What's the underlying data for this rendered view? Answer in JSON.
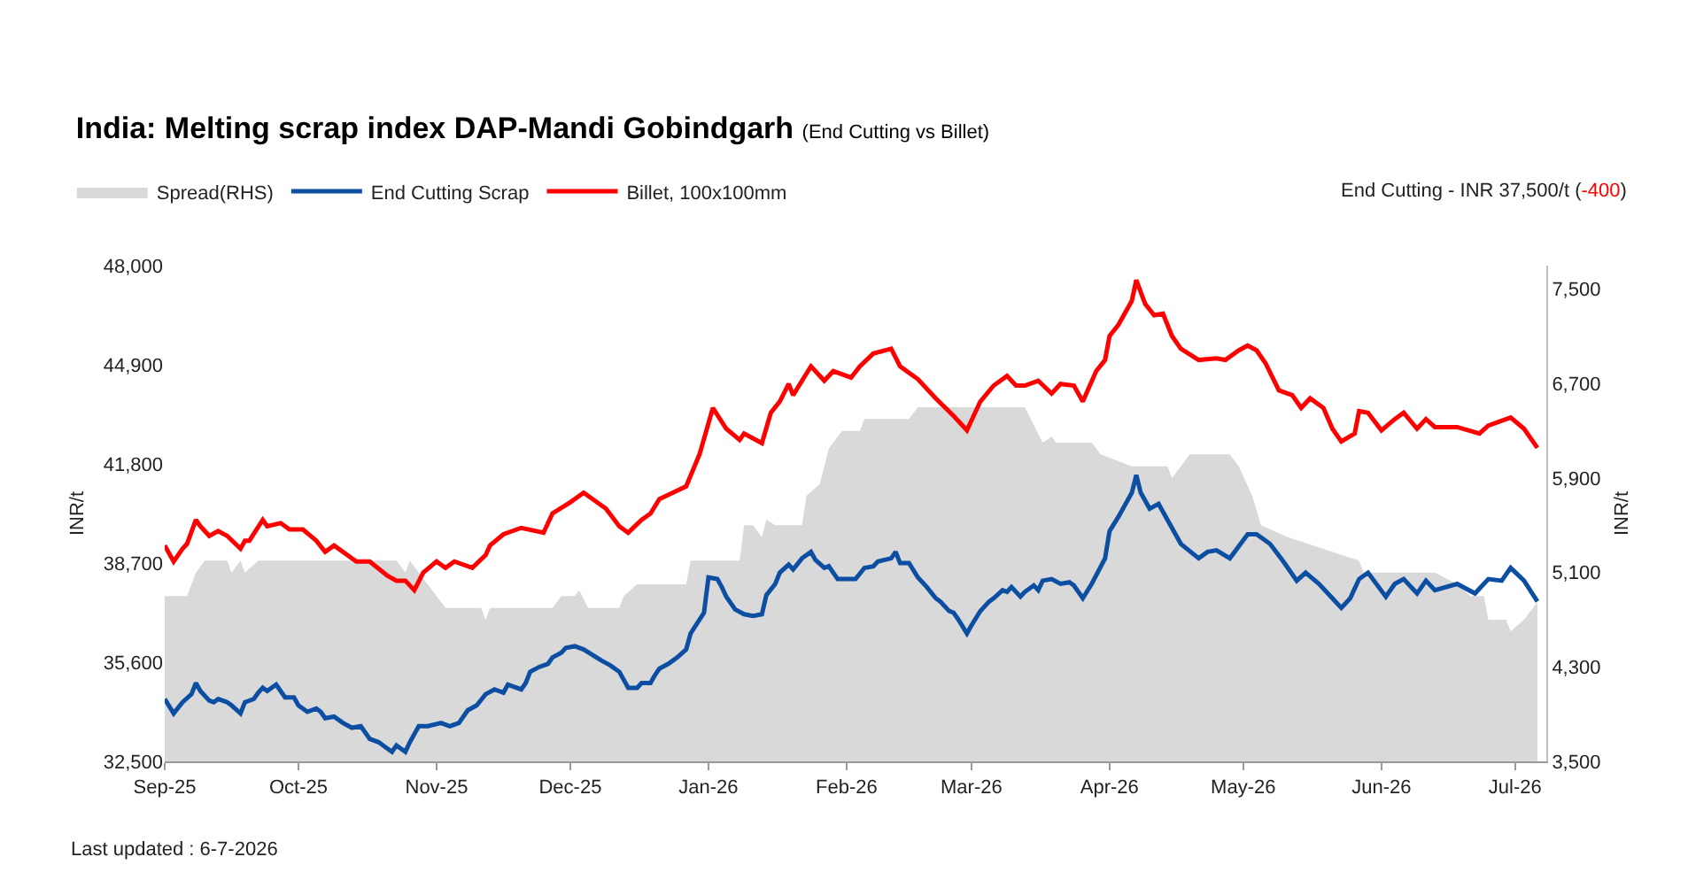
{
  "chart_data": {
    "type": "line",
    "title": "India: Melting scrap index DAP-Mandi Gobindgarh",
    "subtitle": "(End Cutting vs Billet)",
    "ylabel": "INR/t",
    "y2label": "INR/t",
    "annotations": [
      "End Cutting - INR 37,500/t (-400)",
      "Last updated : 6-7-2026"
    ],
    "legend": "top left",
    "grid": false,
    "marker": "none",
    "line_style": "solid",
    "xlim": [
      "2025-09-01",
      "2026-07-08"
    ],
    "xticks": [
      {
        "value": "2025-09-01",
        "label": "Sep-25"
      },
      {
        "value": "2025-10-01",
        "label": "Oct-25"
      },
      {
        "value": "2025-11-01",
        "label": "Nov-25"
      },
      {
        "value": "2025-12-01",
        "label": "Dec-25"
      },
      {
        "value": "2026-01-01",
        "label": "Jan-26"
      },
      {
        "value": "2026-02-01",
        "label": "Feb-26"
      },
      {
        "value": "2026-03-01",
        "label": "Mar-26"
      },
      {
        "value": "2026-04-01",
        "label": "Apr-26"
      },
      {
        "value": "2026-05-01",
        "label": "May-26"
      },
      {
        "value": "2026-06-01",
        "label": "Jun-26"
      },
      {
        "value": "2026-07-01",
        "label": "Jul-26"
      }
    ],
    "ylim": [
      32500,
      48000
    ],
    "yticks": [
      {
        "value": 32500,
        "label": "32,500"
      },
      {
        "value": 35600,
        "label": "35,600"
      },
      {
        "value": 38700,
        "label": "38,700"
      },
      {
        "value": 41800,
        "label": "41,800"
      },
      {
        "value": 44900,
        "label": "44,900"
      },
      {
        "value": 48000,
        "label": "48,000"
      }
    ],
    "y2lim": [
      3500,
      7700
    ],
    "y2ticks": [
      {
        "value": 3500,
        "label": "3,500"
      },
      {
        "value": 4300,
        "label": "4,300"
      },
      {
        "value": 5100,
        "label": "5,100"
      },
      {
        "value": 5900,
        "label": "5,900"
      },
      {
        "value": 6700,
        "label": "6,700"
      },
      {
        "value": 7500,
        "label": "7,500"
      }
    ],
    "series": [
      {
        "name": "Spread(RHS)",
        "type": "area",
        "axis": "y2",
        "color": "#d9d9d9",
        "x": [
          "2025-09-01",
          "2025-09-06",
          "2025-09-08",
          "2025-09-10",
          "2025-09-15",
          "2025-09-16",
          "2025-09-18",
          "2025-09-19",
          "2025-09-22",
          "2025-10-23",
          "2025-10-25",
          "2025-10-26",
          "2025-10-28",
          "2025-10-30",
          "2025-11-03",
          "2025-11-11",
          "2025-11-12",
          "2025-11-13",
          "2025-11-27",
          "2025-11-29",
          "2025-12-02",
          "2025-12-03",
          "2025-12-05",
          "2025-12-12",
          "2025-12-13",
          "2025-12-16",
          "2025-12-27",
          "2025-12-28",
          "2026-01-08",
          "2026-01-09",
          "2026-01-11",
          "2026-01-13",
          "2026-01-14",
          "2026-01-16",
          "2026-01-22",
          "2026-01-23",
          "2026-01-26",
          "2026-01-28",
          "2026-01-31",
          "2026-02-04",
          "2026-02-05",
          "2026-02-15",
          "2026-02-17",
          "2026-03-13",
          "2026-03-17",
          "2026-03-19",
          "2026-03-20",
          "2026-03-28",
          "2026-03-30",
          "2026-04-06",
          "2026-04-14",
          "2026-04-15",
          "2026-04-17",
          "2026-04-19",
          "2026-04-28",
          "2026-04-30",
          "2026-05-03",
          "2026-05-05",
          "2026-05-11",
          "2026-05-19",
          "2026-05-27",
          "2026-05-28",
          "2026-06-13",
          "2026-06-18",
          "2026-06-21",
          "2026-06-24",
          "2026-06-25",
          "2026-06-29",
          "2026-06-30",
          "2026-07-03",
          "2026-07-06"
        ],
        "values": [
          4900,
          4900,
          5100,
          5200,
          5200,
          5100,
          5200,
          5100,
          5200,
          5200,
          5100,
          5200,
          5100,
          5000,
          4800,
          4800,
          4700,
          4800,
          4800,
          4900,
          4900,
          4950,
          4800,
          4800,
          4900,
          5000,
          5000,
          5200,
          5200,
          5500,
          5500,
          5400,
          5550,
          5500,
          5500,
          5750,
          5850,
          6150,
          6300,
          6300,
          6400,
          6400,
          6500,
          6500,
          6200,
          6250,
          6200,
          6200,
          6100,
          6000,
          6000,
          5900,
          6000,
          6100,
          6100,
          6000,
          5750,
          5500,
          5400,
          5300,
          5200,
          5100,
          5100,
          5000,
          4900,
          4900,
          4700,
          4700,
          4600,
          4700,
          4850
        ]
      },
      {
        "name": "End Cutting Scrap",
        "color": "#0b4ea2",
        "x": [
          "2025-09-01",
          "2025-09-03",
          "2025-09-05",
          "2025-09-07",
          "2025-09-08",
          "2025-09-09",
          "2025-09-11",
          "2025-09-12",
          "2025-09-13",
          "2025-09-15",
          "2025-09-16",
          "2025-09-18",
          "2025-09-19",
          "2025-09-21",
          "2025-09-22",
          "2025-09-23",
          "2025-09-24",
          "2025-09-26",
          "2025-09-27",
          "2025-09-28",
          "2025-09-30",
          "2025-10-01",
          "2025-10-03",
          "2025-10-05",
          "2025-10-06",
          "2025-10-07",
          "2025-10-09",
          "2025-10-11",
          "2025-10-13",
          "2025-10-15",
          "2025-10-17",
          "2025-10-19",
          "2025-10-20",
          "2025-10-22",
          "2025-10-23",
          "2025-10-25",
          "2025-10-26",
          "2025-10-28",
          "2025-10-30",
          "2025-11-02",
          "2025-11-04",
          "2025-11-06",
          "2025-11-08",
          "2025-11-10",
          "2025-11-12",
          "2025-11-14",
          "2025-11-16",
          "2025-11-17",
          "2025-11-20",
          "2025-11-21",
          "2025-11-22",
          "2025-11-24",
          "2025-11-26",
          "2025-11-27",
          "2025-11-29",
          "2025-11-30",
          "2025-12-02",
          "2025-12-04",
          "2025-12-08",
          "2025-12-10",
          "2025-12-12",
          "2025-12-13",
          "2025-12-14",
          "2025-12-16",
          "2025-12-17",
          "2025-12-19",
          "2025-12-20",
          "2025-12-21",
          "2025-12-23",
          "2025-12-25",
          "2025-12-27",
          "2025-12-28",
          "2025-12-31",
          "2026-01-01",
          "2026-01-03",
          "2026-01-04",
          "2026-01-05",
          "2026-01-07",
          "2026-01-09",
          "2026-01-11",
          "2026-01-13",
          "2026-01-14",
          "2026-01-16",
          "2026-01-17",
          "2026-01-19",
          "2026-01-20",
          "2026-01-22",
          "2026-01-24",
          "2026-01-25",
          "2026-01-27",
          "2026-01-28",
          "2026-01-30",
          "2026-02-03",
          "2026-02-05",
          "2026-02-07",
          "2026-02-08",
          "2026-02-11",
          "2026-02-12",
          "2026-02-13",
          "2026-02-15",
          "2026-02-17",
          "2026-02-19",
          "2026-02-21",
          "2026-02-22",
          "2026-02-24",
          "2026-02-25",
          "2026-02-26",
          "2026-02-28",
          "2026-03-01",
          "2026-03-03",
          "2026-03-05",
          "2026-03-06",
          "2026-03-08",
          "2026-03-09",
          "2026-03-10",
          "2026-03-12",
          "2026-03-13",
          "2026-03-15",
          "2026-03-16",
          "2026-03-17",
          "2026-03-19",
          "2026-03-21",
          "2026-03-23",
          "2026-03-24",
          "2026-03-26",
          "2026-03-28",
          "2026-03-31",
          "2026-04-01",
          "2026-04-03",
          "2026-04-06",
          "2026-04-07",
          "2026-04-08",
          "2026-04-10",
          "2026-04-12",
          "2026-04-15",
          "2026-04-17",
          "2026-04-21",
          "2026-04-23",
          "2026-04-25",
          "2026-04-28",
          "2026-05-02",
          "2026-05-04",
          "2026-05-07",
          "2026-05-10",
          "2026-05-13",
          "2026-05-15",
          "2026-05-18",
          "2026-05-21",
          "2026-05-23",
          "2026-05-25",
          "2026-05-27",
          "2026-05-29",
          "2026-06-02",
          "2026-06-04",
          "2026-06-06",
          "2026-06-09",
          "2026-06-11",
          "2026-06-13",
          "2026-06-18",
          "2026-06-22",
          "2026-06-25",
          "2026-06-28",
          "2026-06-30",
          "2026-07-03",
          "2026-07-06"
        ],
        "values": [
          34450,
          34000,
          34350,
          34600,
          34950,
          34700,
          34400,
          34350,
          34450,
          34350,
          34250,
          34000,
          34350,
          34450,
          34650,
          34800,
          34700,
          34900,
          34700,
          34500,
          34500,
          34250,
          34050,
          34150,
          34050,
          33850,
          33900,
          33700,
          33550,
          33600,
          33200,
          33100,
          33000,
          32800,
          33000,
          32800,
          33100,
          33600,
          33600,
          33700,
          33600,
          33700,
          34100,
          34250,
          34600,
          34750,
          34650,
          34900,
          34750,
          34950,
          35300,
          35450,
          35550,
          35750,
          35900,
          36050,
          36100,
          36000,
          35650,
          35500,
          35300,
          35050,
          34800,
          34800,
          34950,
          34950,
          35200,
          35400,
          35550,
          35750,
          36000,
          36500,
          37150,
          38250,
          38200,
          37950,
          37650,
          37250,
          37100,
          37050,
          37100,
          37700,
          38050,
          38400,
          38650,
          38500,
          38850,
          39050,
          38800,
          38550,
          38600,
          38200,
          38200,
          38550,
          38600,
          38750,
          38850,
          39050,
          38700,
          38700,
          38250,
          37950,
          37600,
          37500,
          37200,
          37150,
          36950,
          36500,
          36750,
          37200,
          37500,
          37600,
          37850,
          37800,
          37950,
          37650,
          37800,
          38000,
          37850,
          38150,
          38200,
          38050,
          38100,
          38000,
          37600,
          38050,
          38850,
          39700,
          40150,
          40900,
          41450,
          40900,
          40400,
          40550,
          39800,
          39300,
          38850,
          39050,
          39100,
          38850,
          39600,
          39600,
          39300,
          38750,
          38150,
          38400,
          38050,
          37600,
          37300,
          37600,
          38200,
          38400,
          37650,
          38050,
          38200,
          37750,
          38150,
          37850,
          38050,
          37750,
          38200,
          38150,
          38550,
          38150,
          37500
        ]
      },
      {
        "name": "Billet, 100x100mm",
        "color": "#ff0000",
        "x": [
          "2025-09-01",
          "2025-09-03",
          "2025-09-05",
          "2025-09-06",
          "2025-09-08",
          "2025-09-09",
          "2025-09-11",
          "2025-09-13",
          "2025-09-15",
          "2025-09-18",
          "2025-09-19",
          "2025-09-20",
          "2025-09-23",
          "2025-09-24",
          "2025-09-27",
          "2025-09-29",
          "2025-10-02",
          "2025-10-05",
          "2025-10-07",
          "2025-10-09",
          "2025-10-14",
          "2025-10-17",
          "2025-10-21",
          "2025-10-23",
          "2025-10-25",
          "2025-10-27",
          "2025-10-29",
          "2025-11-01",
          "2025-11-03",
          "2025-11-05",
          "2025-11-09",
          "2025-11-12",
          "2025-11-13",
          "2025-11-16",
          "2025-11-20",
          "2025-11-25",
          "2025-11-27",
          "2025-12-01",
          "2025-12-04",
          "2025-12-09",
          "2025-12-12",
          "2025-12-14",
          "2025-12-17",
          "2025-12-19",
          "2025-12-21",
          "2025-12-27",
          "2025-12-30",
          "2026-01-02",
          "2026-01-05",
          "2026-01-08",
          "2026-01-09",
          "2026-01-13",
          "2026-01-15",
          "2026-01-17",
          "2026-01-19",
          "2026-01-20",
          "2026-01-24",
          "2026-01-27",
          "2026-01-29",
          "2026-02-02",
          "2026-02-04",
          "2026-02-07",
          "2026-02-11",
          "2026-02-13",
          "2026-02-17",
          "2026-02-21",
          "2026-02-25",
          "2026-02-28",
          "2026-03-03",
          "2026-03-06",
          "2026-03-09",
          "2026-03-11",
          "2026-03-13",
          "2026-03-16",
          "2026-03-19",
          "2026-03-21",
          "2026-03-24",
          "2026-03-26",
          "2026-03-29",
          "2026-03-31",
          "2026-04-01",
          "2026-04-03",
          "2026-04-06",
          "2026-04-07",
          "2026-04-09",
          "2026-04-11",
          "2026-04-13",
          "2026-04-15",
          "2026-04-17",
          "2026-04-21",
          "2026-04-25",
          "2026-04-27",
          "2026-04-30",
          "2026-05-02",
          "2026-05-04",
          "2026-05-06",
          "2026-05-09",
          "2026-05-12",
          "2026-05-14",
          "2026-05-16",
          "2026-05-19",
          "2026-05-21",
          "2026-05-23",
          "2026-05-26",
          "2026-05-27",
          "2026-05-29",
          "2026-06-01",
          "2026-06-04",
          "2026-06-06",
          "2026-06-09",
          "2026-06-11",
          "2026-06-13",
          "2026-06-18",
          "2026-06-23",
          "2026-06-25",
          "2026-06-30",
          "2026-07-03",
          "2026-07-06"
        ],
        "values": [
          39250,
          38750,
          39150,
          39300,
          40050,
          39850,
          39550,
          39700,
          39550,
          39150,
          39400,
          39400,
          40050,
          39850,
          39950,
          39750,
          39750,
          39400,
          39050,
          39250,
          38750,
          38750,
          38300,
          38150,
          38150,
          37850,
          38400,
          38750,
          38550,
          38750,
          38550,
          38950,
          39250,
          39600,
          39800,
          39650,
          40250,
          40600,
          40900,
          40400,
          39850,
          39650,
          40050,
          40250,
          40700,
          41100,
          42100,
          43550,
          42900,
          42550,
          42750,
          42450,
          43400,
          43750,
          44300,
          43950,
          44850,
          44400,
          44700,
          44500,
          44850,
          45250,
          45400,
          44850,
          44450,
          43850,
          43300,
          42850,
          43750,
          44250,
          44550,
          44250,
          44250,
          44400,
          44000,
          44300,
          44250,
          43750,
          44700,
          45050,
          45800,
          46150,
          46900,
          47550,
          46800,
          46450,
          46500,
          45800,
          45400,
          45050,
          45100,
          45050,
          45350,
          45500,
          45350,
          44950,
          44100,
          43950,
          43550,
          43850,
          43550,
          42900,
          42500,
          42750,
          43450,
          43400,
          42850,
          43200,
          43400,
          42900,
          43200,
          42950,
          42950,
          42750,
          43000,
          43250,
          42900,
          42300
        ]
      }
    ]
  }
}
